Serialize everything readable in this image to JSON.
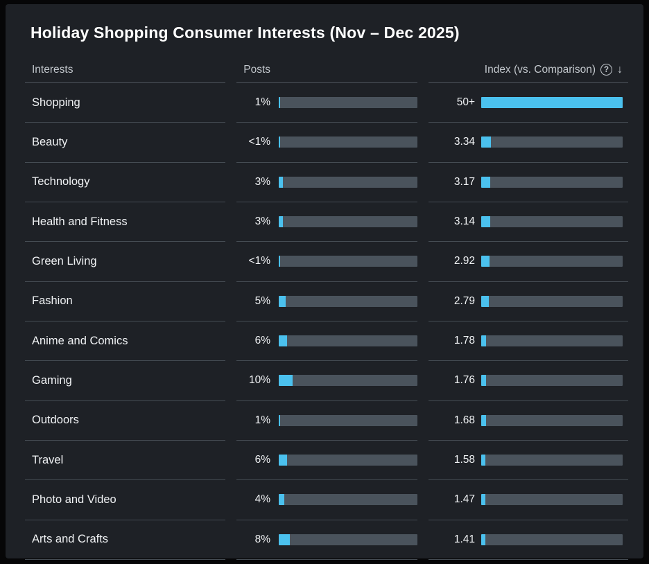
{
  "title": "Holiday Shopping Consumer Interests (Nov – Dec 2025)",
  "columns": {
    "interests": "Interests",
    "posts": "Posts",
    "index": "Index (vs. Comparison)"
  },
  "icons": {
    "help": "?",
    "sort_desc": "↓"
  },
  "colors": {
    "accent": "#4bc1ee",
    "bar_track": "#4a535c",
    "card_bg": "#1e2126",
    "outer_bg": "#060607",
    "divider": "#454c53",
    "header_text": "#c3c8cd",
    "row_text": "#f0f2f4"
  },
  "chart_data": {
    "type": "bar",
    "orientation": "horizontal",
    "posts_axis_max": 100,
    "index_axis_max": 50,
    "sort": "index_desc",
    "rows": [
      {
        "interest": "Shopping",
        "posts_label": "1%",
        "posts_pct": 1,
        "index_label": "50+",
        "index_value": 50
      },
      {
        "interest": "Beauty",
        "posts_label": "<1%",
        "posts_pct": 0.5,
        "index_label": "3.34",
        "index_value": 3.34
      },
      {
        "interest": "Technology",
        "posts_label": "3%",
        "posts_pct": 3,
        "index_label": "3.17",
        "index_value": 3.17
      },
      {
        "interest": "Health and Fitness",
        "posts_label": "3%",
        "posts_pct": 3,
        "index_label": "3.14",
        "index_value": 3.14
      },
      {
        "interest": "Green Living",
        "posts_label": "<1%",
        "posts_pct": 0.5,
        "index_label": "2.92",
        "index_value": 2.92
      },
      {
        "interest": "Fashion",
        "posts_label": "5%",
        "posts_pct": 5,
        "index_label": "2.79",
        "index_value": 2.79
      },
      {
        "interest": "Anime and Comics",
        "posts_label": "6%",
        "posts_pct": 6,
        "index_label": "1.78",
        "index_value": 1.78
      },
      {
        "interest": "Gaming",
        "posts_label": "10%",
        "posts_pct": 10,
        "index_label": "1.76",
        "index_value": 1.76
      },
      {
        "interest": "Outdoors",
        "posts_label": "1%",
        "posts_pct": 1,
        "index_label": "1.68",
        "index_value": 1.68
      },
      {
        "interest": "Travel",
        "posts_label": "6%",
        "posts_pct": 6,
        "index_label": "1.58",
        "index_value": 1.58
      },
      {
        "interest": "Photo and Video",
        "posts_label": "4%",
        "posts_pct": 4,
        "index_label": "1.47",
        "index_value": 1.47
      },
      {
        "interest": "Arts and Crafts",
        "posts_label": "8%",
        "posts_pct": 8,
        "index_label": "1.41",
        "index_value": 1.41
      }
    ]
  }
}
